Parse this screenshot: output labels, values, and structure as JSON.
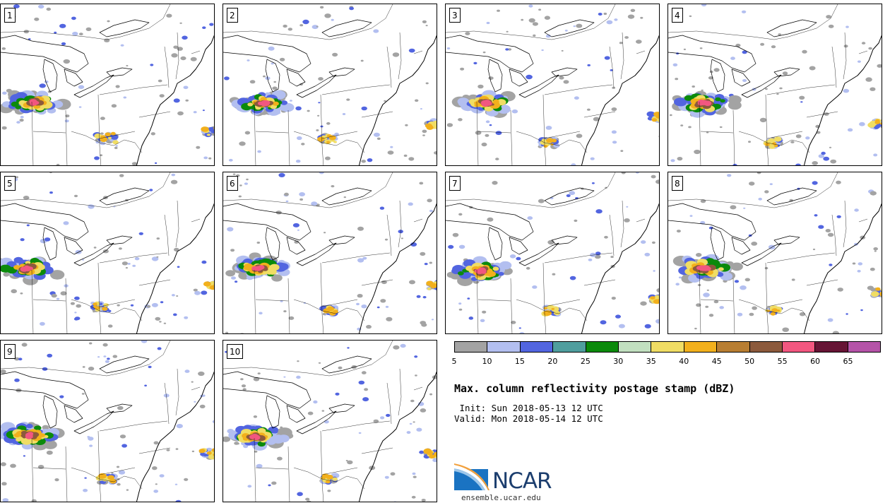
{
  "page": {
    "title": "Max. column reflectivity postage stamp (dBZ)",
    "init": " Init: Sun 2018-05-13 12 UTC",
    "valid": "Valid: Mon 2018-05-14 12 UTC"
  },
  "members": [
    "1",
    "2",
    "3",
    "4",
    "5",
    "6",
    "7",
    "8",
    "9",
    "10"
  ],
  "legend": {
    "units": "dBZ",
    "colors": [
      "#a3a3a3",
      "#b3bff0",
      "#5265e0",
      "#4f9e9e",
      "#0b8a0b",
      "#c2e0c0",
      "#f0dd64",
      "#f2b01c",
      "#b87e32",
      "#8c5a3c",
      "#f25780",
      "#661435",
      "#b553a8"
    ],
    "ticks": [
      "5",
      "10",
      "15",
      "20",
      "25",
      "30",
      "35",
      "40",
      "45",
      "50",
      "55",
      "60",
      "65"
    ]
  },
  "branding": {
    "logo_text": "NCAR",
    "url": "ensemble.ucar.edu",
    "logo_blue": "#1a73c2",
    "logo_dark": "#1c3e6e"
  }
}
